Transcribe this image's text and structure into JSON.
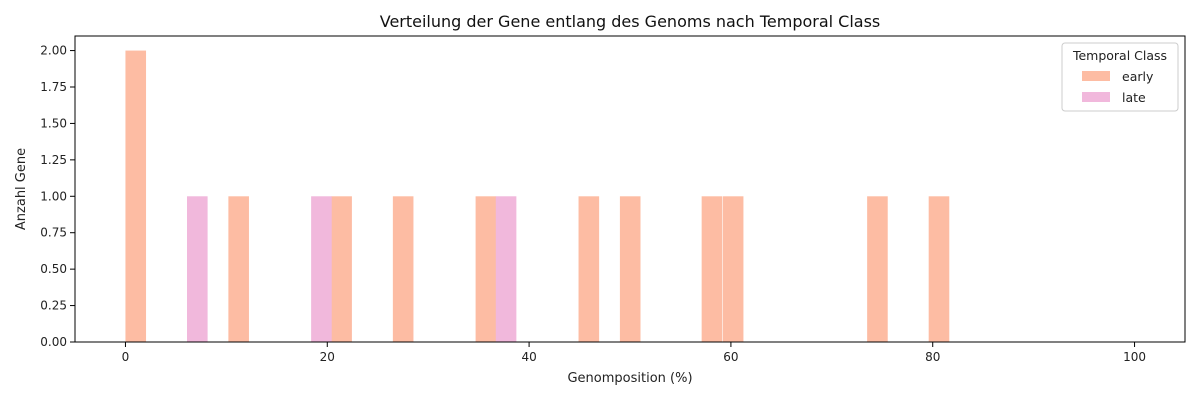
{
  "chart_data": {
    "type": "bar",
    "title": "Verteilung der Gene entlang des Genoms nach Temporal Class",
    "xlabel": "Genomposition (%)",
    "ylabel": "Anzahl Gene",
    "xlim": [
      -5,
      105
    ],
    "ylim": [
      0,
      2.1
    ],
    "x_ticks": [
      0,
      20,
      40,
      60,
      80,
      100
    ],
    "x_tick_labels": [
      "0",
      "20",
      "40",
      "60",
      "80",
      "100"
    ],
    "y_ticks": [
      0,
      0.25,
      0.5,
      0.75,
      1.0,
      1.25,
      1.5,
      1.75,
      2.0
    ],
    "y_tick_labels": [
      "0.00",
      "0.25",
      "0.50",
      "0.75",
      "1.00",
      "1.25",
      "1.50",
      "1.75",
      "2.00"
    ],
    "bin_width": 2.04,
    "grid": false,
    "legend": {
      "title": "Temporal Class",
      "position": "top-right"
    },
    "series": [
      {
        "name": "early",
        "color": "#fdbca3",
        "bins": [
          {
            "start": 0.0,
            "count": 2
          },
          {
            "start": 10.2,
            "count": 1
          },
          {
            "start": 20.4,
            "count": 1
          },
          {
            "start": 26.5,
            "count": 1
          },
          {
            "start": 34.7,
            "count": 1
          },
          {
            "start": 44.9,
            "count": 1
          },
          {
            "start": 49.0,
            "count": 1
          },
          {
            "start": 57.1,
            "count": 1
          },
          {
            "start": 59.2,
            "count": 1
          },
          {
            "start": 73.5,
            "count": 1
          },
          {
            "start": 79.6,
            "count": 1
          }
        ]
      },
      {
        "name": "late",
        "color": "#f1b8dc",
        "bins": [
          {
            "start": 6.1,
            "count": 1
          },
          {
            "start": 18.4,
            "count": 1
          },
          {
            "start": 36.7,
            "count": 1
          }
        ]
      }
    ]
  }
}
